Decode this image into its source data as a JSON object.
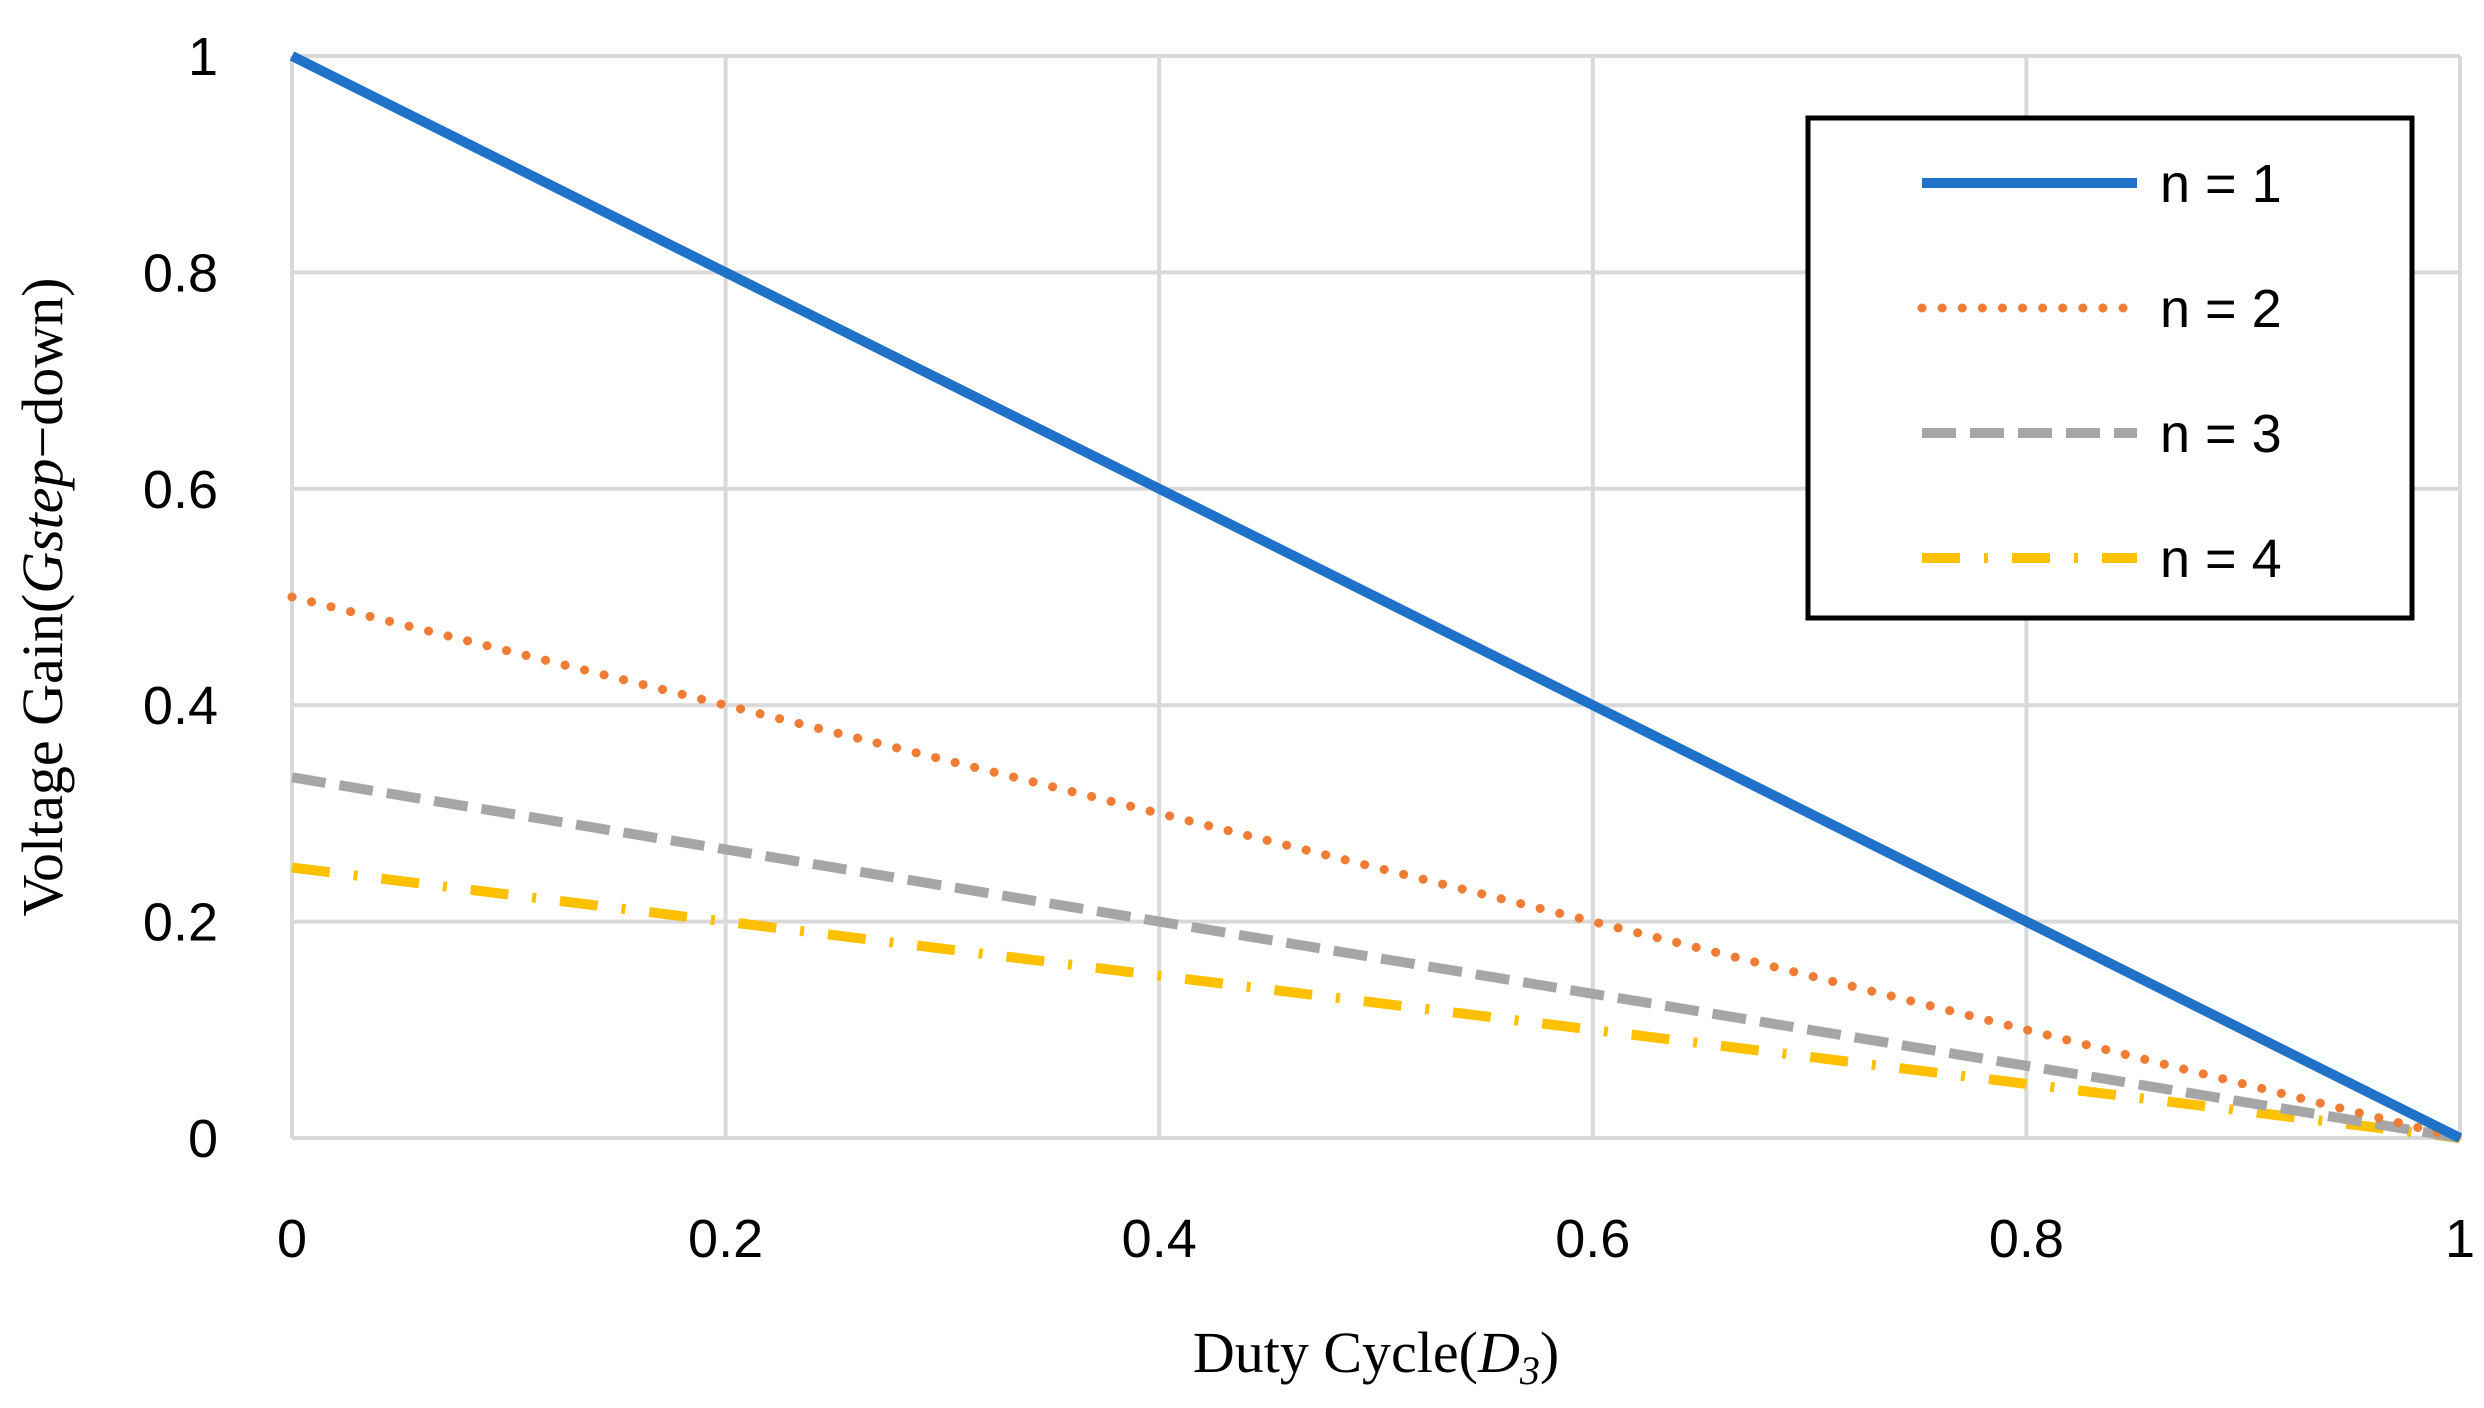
{
  "chart_data": {
    "type": "line",
    "title": "",
    "xlabel_prefix": "Duty Cycle(",
    "xlabel_var": "D",
    "xlabel_sub": "3",
    "xlabel_suffix": ")",
    "ylabel_prefix": "Voltage Gain(",
    "ylabel_var": "Gstep",
    "ylabel_suffix": "−down)",
    "xlim": [
      0,
      1
    ],
    "ylim": [
      0,
      1
    ],
    "x_ticks": [
      0,
      0.2,
      0.4,
      0.6,
      0.8,
      1
    ],
    "y_ticks": [
      0,
      0.2,
      0.4,
      0.6,
      0.8,
      1
    ],
    "x_tick_labels": [
      "0",
      "0.2",
      "0.4",
      "0.6",
      "0.8",
      "1"
    ],
    "y_tick_labels": [
      "0",
      "0.2",
      "0.4",
      "0.6",
      "0.8",
      "1"
    ],
    "grid": true,
    "legend_position": "top-right",
    "x": [
      0,
      0.2,
      0.4,
      0.6,
      0.8,
      1
    ],
    "series": [
      {
        "name": "n = 1",
        "style": "solid",
        "color": "#1F72C8",
        "values": [
          1,
          0.8,
          0.6,
          0.4,
          0.2,
          0
        ]
      },
      {
        "name": "n = 2",
        "style": "dotted",
        "color": "#F07D33",
        "values": [
          0.5,
          0.4,
          0.3,
          0.2,
          0.1,
          0
        ]
      },
      {
        "name": "n = 3",
        "style": "dashed",
        "color": "#A6A6A6",
        "values": [
          0.3333,
          0.2667,
          0.2,
          0.1333,
          0.0667,
          0
        ]
      },
      {
        "name": "n = 4",
        "style": "dashdot",
        "color": "#FFC000",
        "values": [
          0.25,
          0.2,
          0.15,
          0.1,
          0.05,
          0
        ]
      }
    ]
  }
}
